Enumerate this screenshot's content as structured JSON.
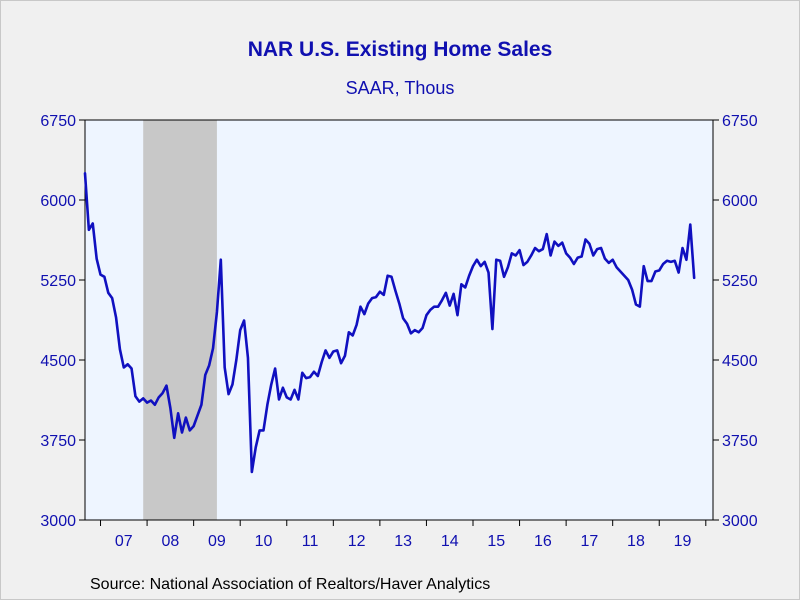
{
  "chart_data": {
    "type": "line",
    "title": "NAR U.S. Existing Home Sales",
    "subtitle": "SAAR, Thous",
    "source": "Source:  National Association of Realtors/Haver Analytics",
    "start": "2006-09",
    "frequency": "monthly",
    "ylim": [
      3000,
      6750
    ],
    "yticks": [
      3000,
      3750,
      4500,
      5250,
      6000,
      6750
    ],
    "ytick_labels": [
      "3000",
      "3750",
      "4500",
      "5250",
      "6000",
      "6750"
    ],
    "xtick_labels": [
      "07",
      "08",
      "09",
      "10",
      "11",
      "12",
      "13",
      "14",
      "15",
      "16",
      "17",
      "18",
      "19"
    ],
    "recession_shading": {
      "start": "2007-12",
      "end": "2009-06"
    },
    "colors": {
      "line": "#1010c0",
      "shade": "#c8c8c8",
      "plot_bg": "#eef5ff",
      "text": "#1010b0"
    },
    "series": [
      {
        "values": [
          6250,
          5720,
          5780,
          5450,
          5300,
          5280,
          5130,
          5080,
          4900,
          4600,
          4430,
          4460,
          4420,
          4160,
          4110,
          4140,
          4100,
          4120,
          4080,
          4150,
          4190,
          4260,
          4050,
          3770,
          4000,
          3820,
          3960,
          3840,
          3880,
          3980,
          4080,
          4360,
          4450,
          4610,
          4950,
          5440,
          4430,
          4180,
          4270,
          4500,
          4780,
          4870,
          4520,
          3450,
          3680,
          3840,
          3840,
          4080,
          4270,
          4420,
          4130,
          4240,
          4150,
          4130,
          4220,
          4130,
          4380,
          4330,
          4340,
          4390,
          4350,
          4480,
          4590,
          4520,
          4580,
          4590,
          4470,
          4540,
          4760,
          4730,
          4830,
          5000,
          4930,
          5030,
          5080,
          5090,
          5140,
          5110,
          5290,
          5280,
          5150,
          5030,
          4890,
          4840,
          4750,
          4780,
          4760,
          4800,
          4920,
          4970,
          5000,
          5000,
          5060,
          5130,
          5010,
          5120,
          4920,
          5210,
          5180,
          5290,
          5380,
          5440,
          5380,
          5420,
          5320,
          4790,
          5440,
          5430,
          5280,
          5370,
          5500,
          5480,
          5530,
          5390,
          5420,
          5480,
          5550,
          5520,
          5540,
          5680,
          5480,
          5610,
          5570,
          5600,
          5500,
          5460,
          5400,
          5460,
          5470,
          5630,
          5590,
          5480,
          5540,
          5550,
          5450,
          5410,
          5440,
          5370,
          5330,
          5290,
          5250,
          5160,
          5020,
          5000,
          5380,
          5240,
          5240,
          5330,
          5340,
          5400,
          5430,
          5420,
          5430,
          5320,
          5550,
          5440,
          5770,
          5270
        ]
      }
    ]
  }
}
